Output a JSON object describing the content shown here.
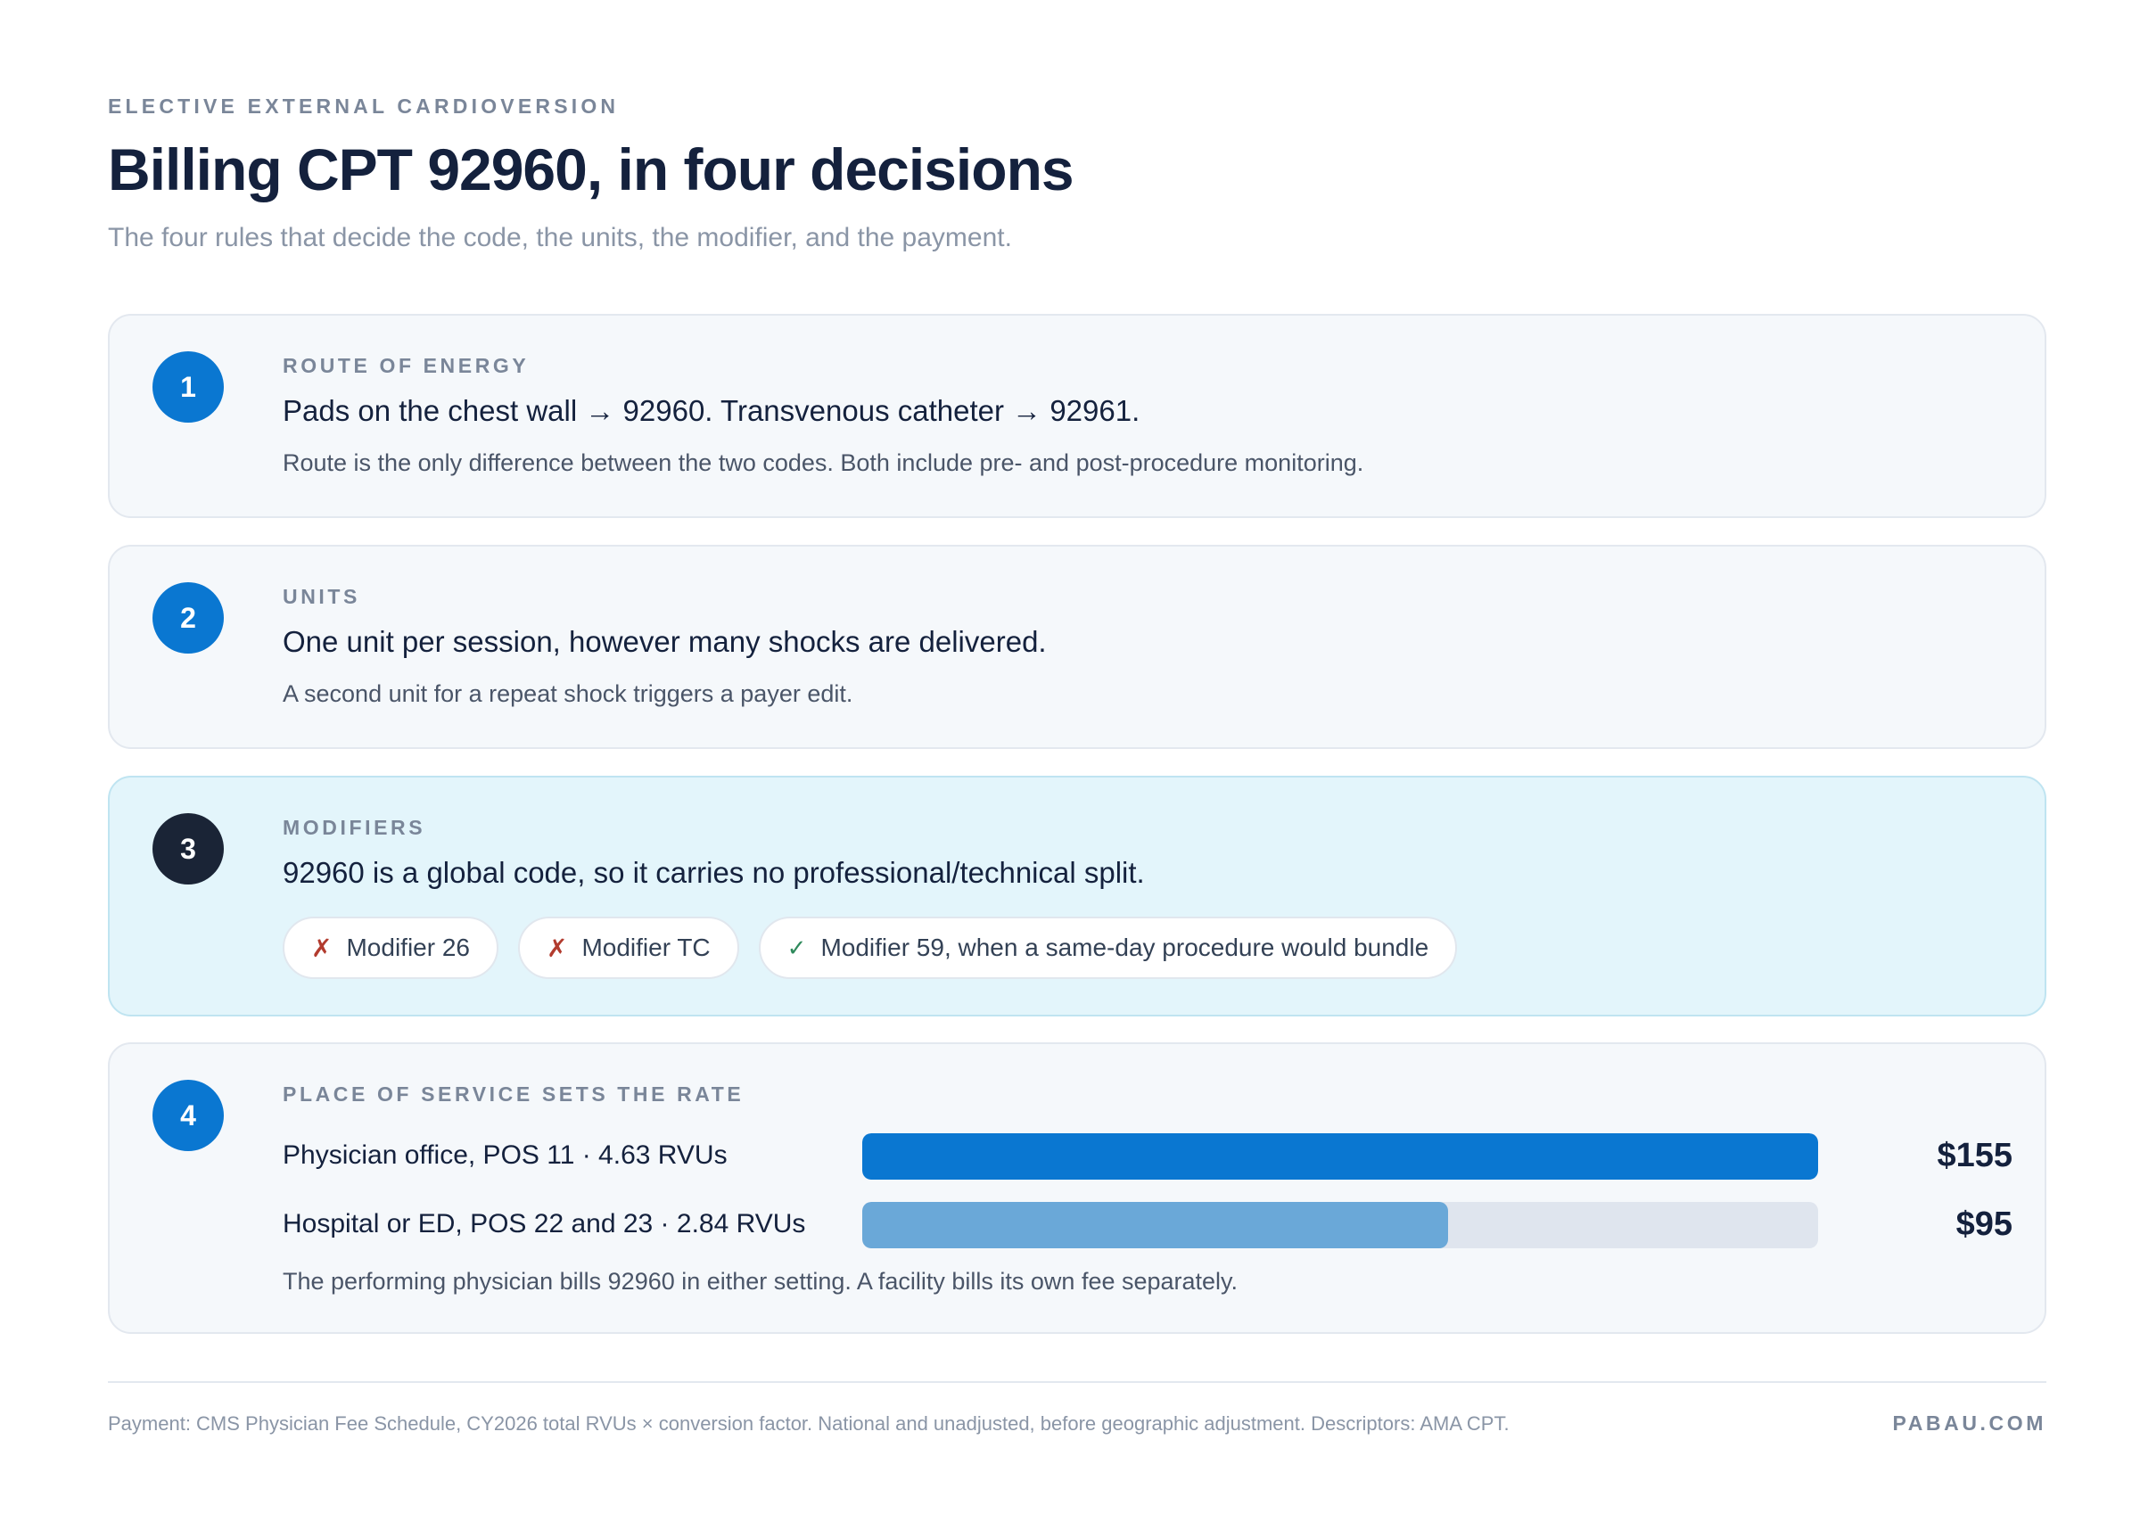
{
  "header": {
    "eyebrow": "ELECTIVE EXTERNAL CARDIOVERSION",
    "title": "Billing CPT 92960, in four decisions",
    "subtitle": "The four rules that decide the code, the units, the modifier, and the payment."
  },
  "steps": [
    {
      "number": "1",
      "label": "ROUTE OF ENERGY",
      "headline": "Pads on the chest wall → 92960. Transvenous catheter → 92961.",
      "note": "Route is the only difference between the two codes. Both include pre- and post-procedure monitoring."
    },
    {
      "number": "2",
      "label": "UNITS",
      "headline": "One unit per session, however many shocks are delivered.",
      "note": "A second unit for a repeat shock triggers a payer edit."
    },
    {
      "number": "3",
      "label": "MODIFIERS",
      "headline": "92960 is a global code, so it carries no professional/technical split.",
      "pills": [
        {
          "mark": "✗",
          "status": "not-allowed",
          "text": "Modifier 26"
        },
        {
          "mark": "✗",
          "status": "not-allowed",
          "text": "Modifier TC"
        },
        {
          "mark": "✓",
          "status": "allowed",
          "text": "Modifier 59, when a same-day procedure would bundle"
        }
      ]
    },
    {
      "number": "4",
      "label": "PLACE OF SERVICE SETS THE RATE",
      "rates": [
        {
          "label": "Physician office, POS 11 · 4.63 RVUs",
          "value": "$155",
          "amount": 155,
          "color": "#0a77d1"
        },
        {
          "label": "Hospital or ED, POS 22 and 23 · 2.84 RVUs",
          "value": "$95",
          "amount": 95,
          "color": "#6aa8d8"
        }
      ],
      "rate_max": 155,
      "note": "The performing physician bills 92960 in either setting. A facility bills its own fee separately."
    }
  ],
  "footer": {
    "footnote": "Payment: CMS Physician Fee Schedule, CY2026 total RVUs × conversion factor. National and unadjusted, before geographic adjustment. Descriptors: AMA CPT.",
    "brand": "PABAU.COM"
  }
}
